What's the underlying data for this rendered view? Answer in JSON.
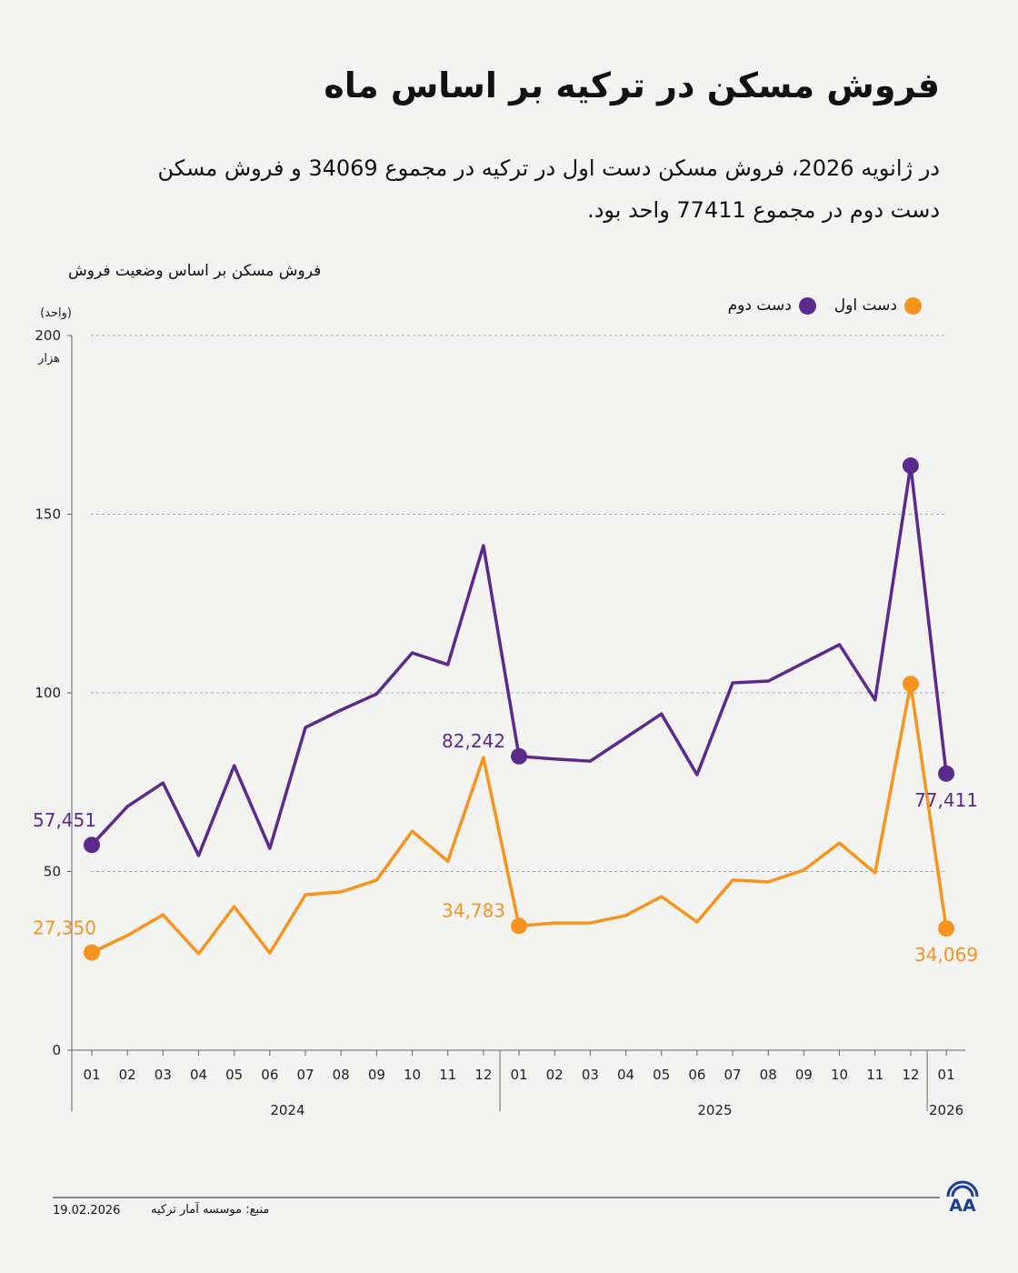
{
  "header": {
    "title": "فروش مسکن در ترکیه بر اساس ماه",
    "subtitle": "در ژانویه 2026، فروش مسکن دست اول در ترکیه در مجموع 34069 و فروش مسکن دست دوم در مجموع 77411 واحد بود."
  },
  "footer": {
    "date": "19.02.2026",
    "source": "منبع: موسسه آمار ترکیه",
    "logo": "AA"
  },
  "chart_data": {
    "type": "line",
    "title": "فروش مسکن بر اساس وضعیت فروش",
    "ylabel": "(واحد)",
    "yunit": "هزار",
    "ylim": [
      0,
      200
    ],
    "yticks": [
      0,
      50,
      100,
      150,
      200
    ],
    "grid": true,
    "legend": "top-right",
    "categories": [
      "01",
      "02",
      "03",
      "04",
      "05",
      "06",
      "07",
      "08",
      "09",
      "10",
      "11",
      "12",
      "01",
      "02",
      "03",
      "04",
      "05",
      "06",
      "07",
      "08",
      "09",
      "10",
      "11",
      "12",
      "01"
    ],
    "years": [
      {
        "label": "2024",
        "count": 12
      },
      {
        "label": "2025",
        "count": 12
      },
      {
        "label": "2026",
        "count": 1
      }
    ],
    "series": [
      {
        "name": "دست اول",
        "color": "#f7941d",
        "values": [
          27.35,
          32.1,
          37.9,
          27.0,
          40.2,
          27.2,
          43.5,
          44.3,
          47.6,
          61.3,
          52.9,
          81.9,
          34.783,
          35.6,
          35.6,
          37.7,
          43.0,
          35.9,
          47.6,
          47.1,
          50.4,
          58.0,
          49.6,
          102.5,
          34.069
        ],
        "labels": [
          {
            "index": 0,
            "text": "27,350"
          },
          {
            "index": 12,
            "text": "34,783"
          },
          {
            "index": 24,
            "text": "34,069"
          }
        ],
        "markers": [
          0,
          12,
          23,
          24
        ]
      },
      {
        "name": "دست دوم",
        "color": "#5b2a8c",
        "values": [
          57.451,
          68.2,
          74.8,
          54.5,
          79.6,
          56.5,
          90.3,
          95.2,
          99.7,
          111.2,
          107.9,
          141.2,
          82.242,
          81.5,
          80.9,
          87.5,
          94.1,
          77.1,
          102.8,
          103.3,
          108.4,
          113.5,
          98.0,
          163.6,
          77.411
        ],
        "labels": [
          {
            "index": 0,
            "text": "57,451"
          },
          {
            "index": 12,
            "text": "82,242"
          },
          {
            "index": 24,
            "text": "77,411"
          }
        ],
        "markers": [
          0,
          12,
          23,
          24
        ]
      }
    ]
  }
}
